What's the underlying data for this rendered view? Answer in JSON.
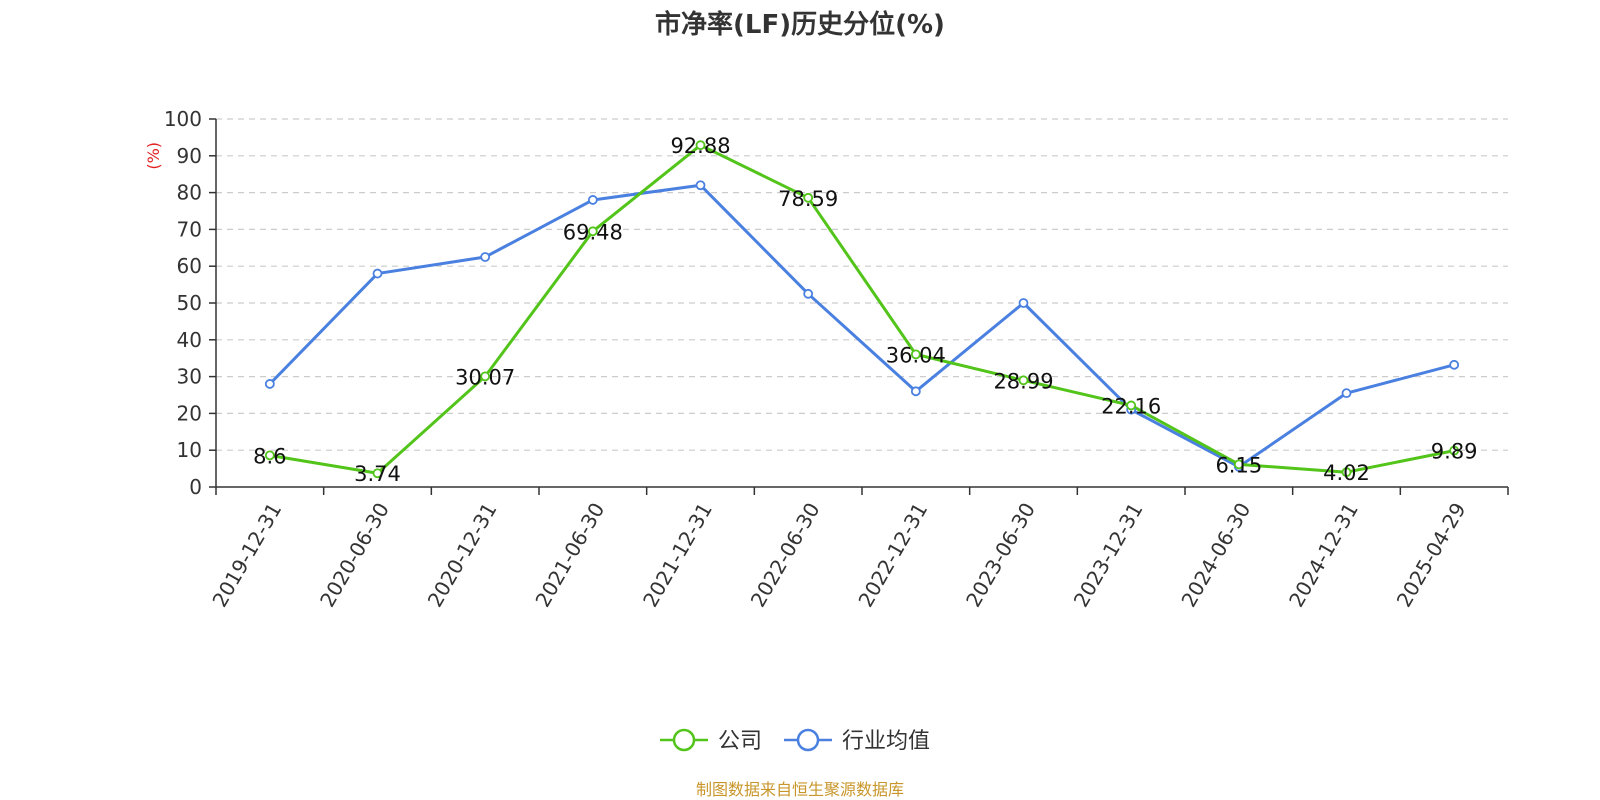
{
  "colors": {
    "company": "#52c41a",
    "industry": "#4a80e0",
    "unit": "#e02020",
    "source": "#c8962a",
    "grid": "#cccccc",
    "axis": "#333333"
  },
  "footer": {
    "source": "制图数据来自恒生聚源数据库"
  },
  "chart_data": {
    "type": "line",
    "title": "市净率(LF)历史分位(%)",
    "ylabel": "(%)",
    "xlabel": "",
    "ylim": [
      0,
      100
    ],
    "yticks": [
      0,
      10,
      20,
      30,
      40,
      50,
      60,
      70,
      80,
      90,
      100
    ],
    "grid": true,
    "legend_position": "bottom-center",
    "categories": [
      "2019-12-31",
      "2020-06-30",
      "2020-12-31",
      "2021-06-30",
      "2021-12-31",
      "2022-06-30",
      "2022-12-31",
      "2023-06-30",
      "2023-12-31",
      "2024-06-30",
      "2024-12-31",
      "2025-04-29"
    ],
    "series": [
      {
        "name": "公司",
        "color": "#52c41a",
        "show_labels": true,
        "values": [
          8.6,
          3.74,
          30.07,
          69.48,
          92.88,
          78.59,
          36.04,
          28.99,
          22.16,
          6.15,
          4.02,
          9.89
        ],
        "labels": [
          "8.6",
          "3.74",
          "30.07",
          "69.48",
          "92.88",
          "78.59",
          "36.04",
          "28.99",
          "22.16",
          "6.15",
          "4.02",
          "9.89"
        ]
      },
      {
        "name": "行业均值",
        "color": "#4a80e0",
        "show_labels": false,
        "values": [
          28,
          58,
          62.5,
          78,
          82,
          52.5,
          26,
          50,
          21,
          5.5,
          25.5,
          33.2
        ]
      }
    ]
  }
}
